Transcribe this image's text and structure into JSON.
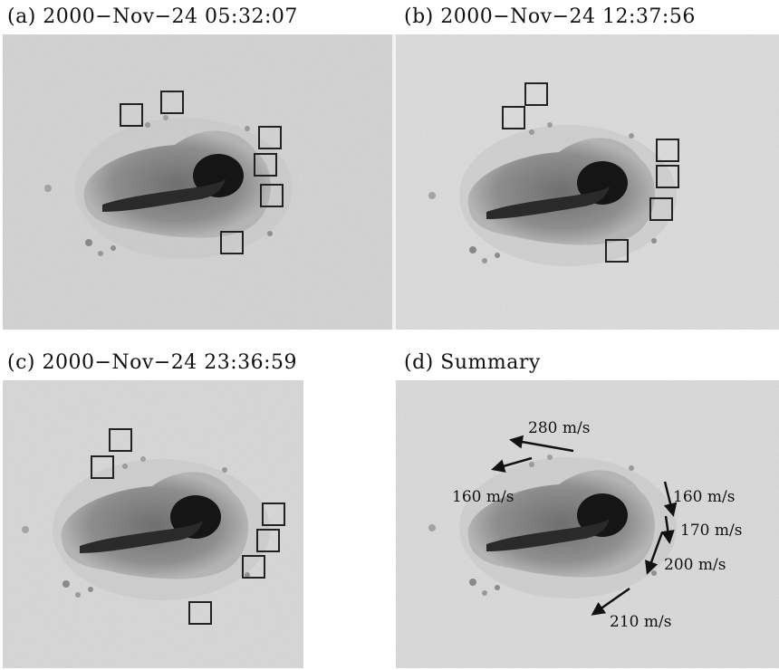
{
  "panels": [
    {
      "id": "a",
      "label": "(a) 2000−Nov−24 05:32:07"
    },
    {
      "id": "b",
      "label": "(b) 2000−Nov−24 12:37:56"
    },
    {
      "id": "c",
      "label": "(c) 2000−Nov−24 23:36:59"
    },
    {
      "id": "d",
      "label": "(d) Summary"
    }
  ],
  "summary_speeds": [
    {
      "text": "280 m/s"
    },
    {
      "text": "160 m/s"
    },
    {
      "text": "160 m/s"
    },
    {
      "text": "170 m/s"
    },
    {
      "text": "200 m/s"
    },
    {
      "text": "210 m/s"
    }
  ],
  "colors": {
    "photosphere": "#d6d6d6",
    "penumbra": "#8a8a8a",
    "umbra": "#1a1a1a"
  }
}
